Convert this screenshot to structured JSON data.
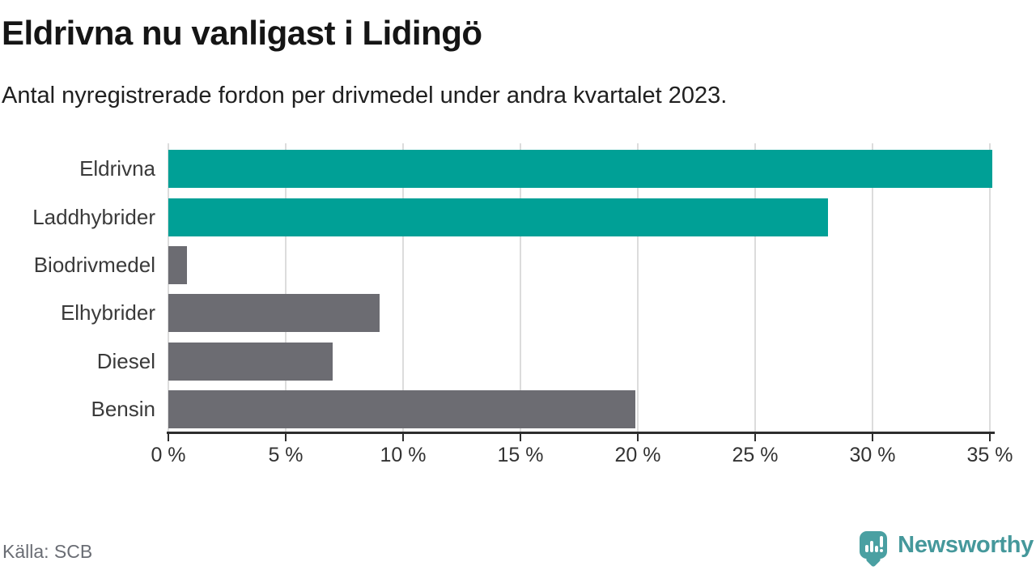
{
  "header": {
    "title": "Eldrivna nu vanligast i Lidingö",
    "subtitle": "Antal nyregistrerade fordon per drivmedel under andra kvartalet 2023."
  },
  "chart_data": {
    "type": "bar",
    "orientation": "horizontal",
    "title": "Eldrivna nu vanligast i Lidingö",
    "subtitle": "Antal nyregistrerade fordon per drivmedel under andra kvartalet 2023.",
    "categories": [
      "Eldrivna",
      "Laddhybrider",
      "Biodrivmedel",
      "Elhybrider",
      "Diesel",
      "Bensin"
    ],
    "values": [
      35.1,
      28.1,
      0.8,
      9.0,
      7.0,
      19.9
    ],
    "unit": "%",
    "bar_colors": [
      "#00a096",
      "#00a096",
      "#6c6c72",
      "#6c6c72",
      "#6c6c72",
      "#6c6c72"
    ],
    "highlight_color": "#00a096",
    "default_color": "#6c6c72",
    "xlim": [
      0,
      35
    ],
    "x_ticks": [
      0,
      5,
      10,
      15,
      20,
      25,
      30,
      35
    ],
    "x_tick_labels": [
      "0 %",
      "5 %",
      "10 %",
      "15 %",
      "20 %",
      "25 %",
      "30 %",
      "35 %"
    ],
    "grid": true,
    "legend": false
  },
  "footer": {
    "source": "Källa: SCB",
    "brand": "Newsworthy",
    "brand_color": "#45989b",
    "logo_icon": "speech-bubble-bar-chart-icon"
  }
}
